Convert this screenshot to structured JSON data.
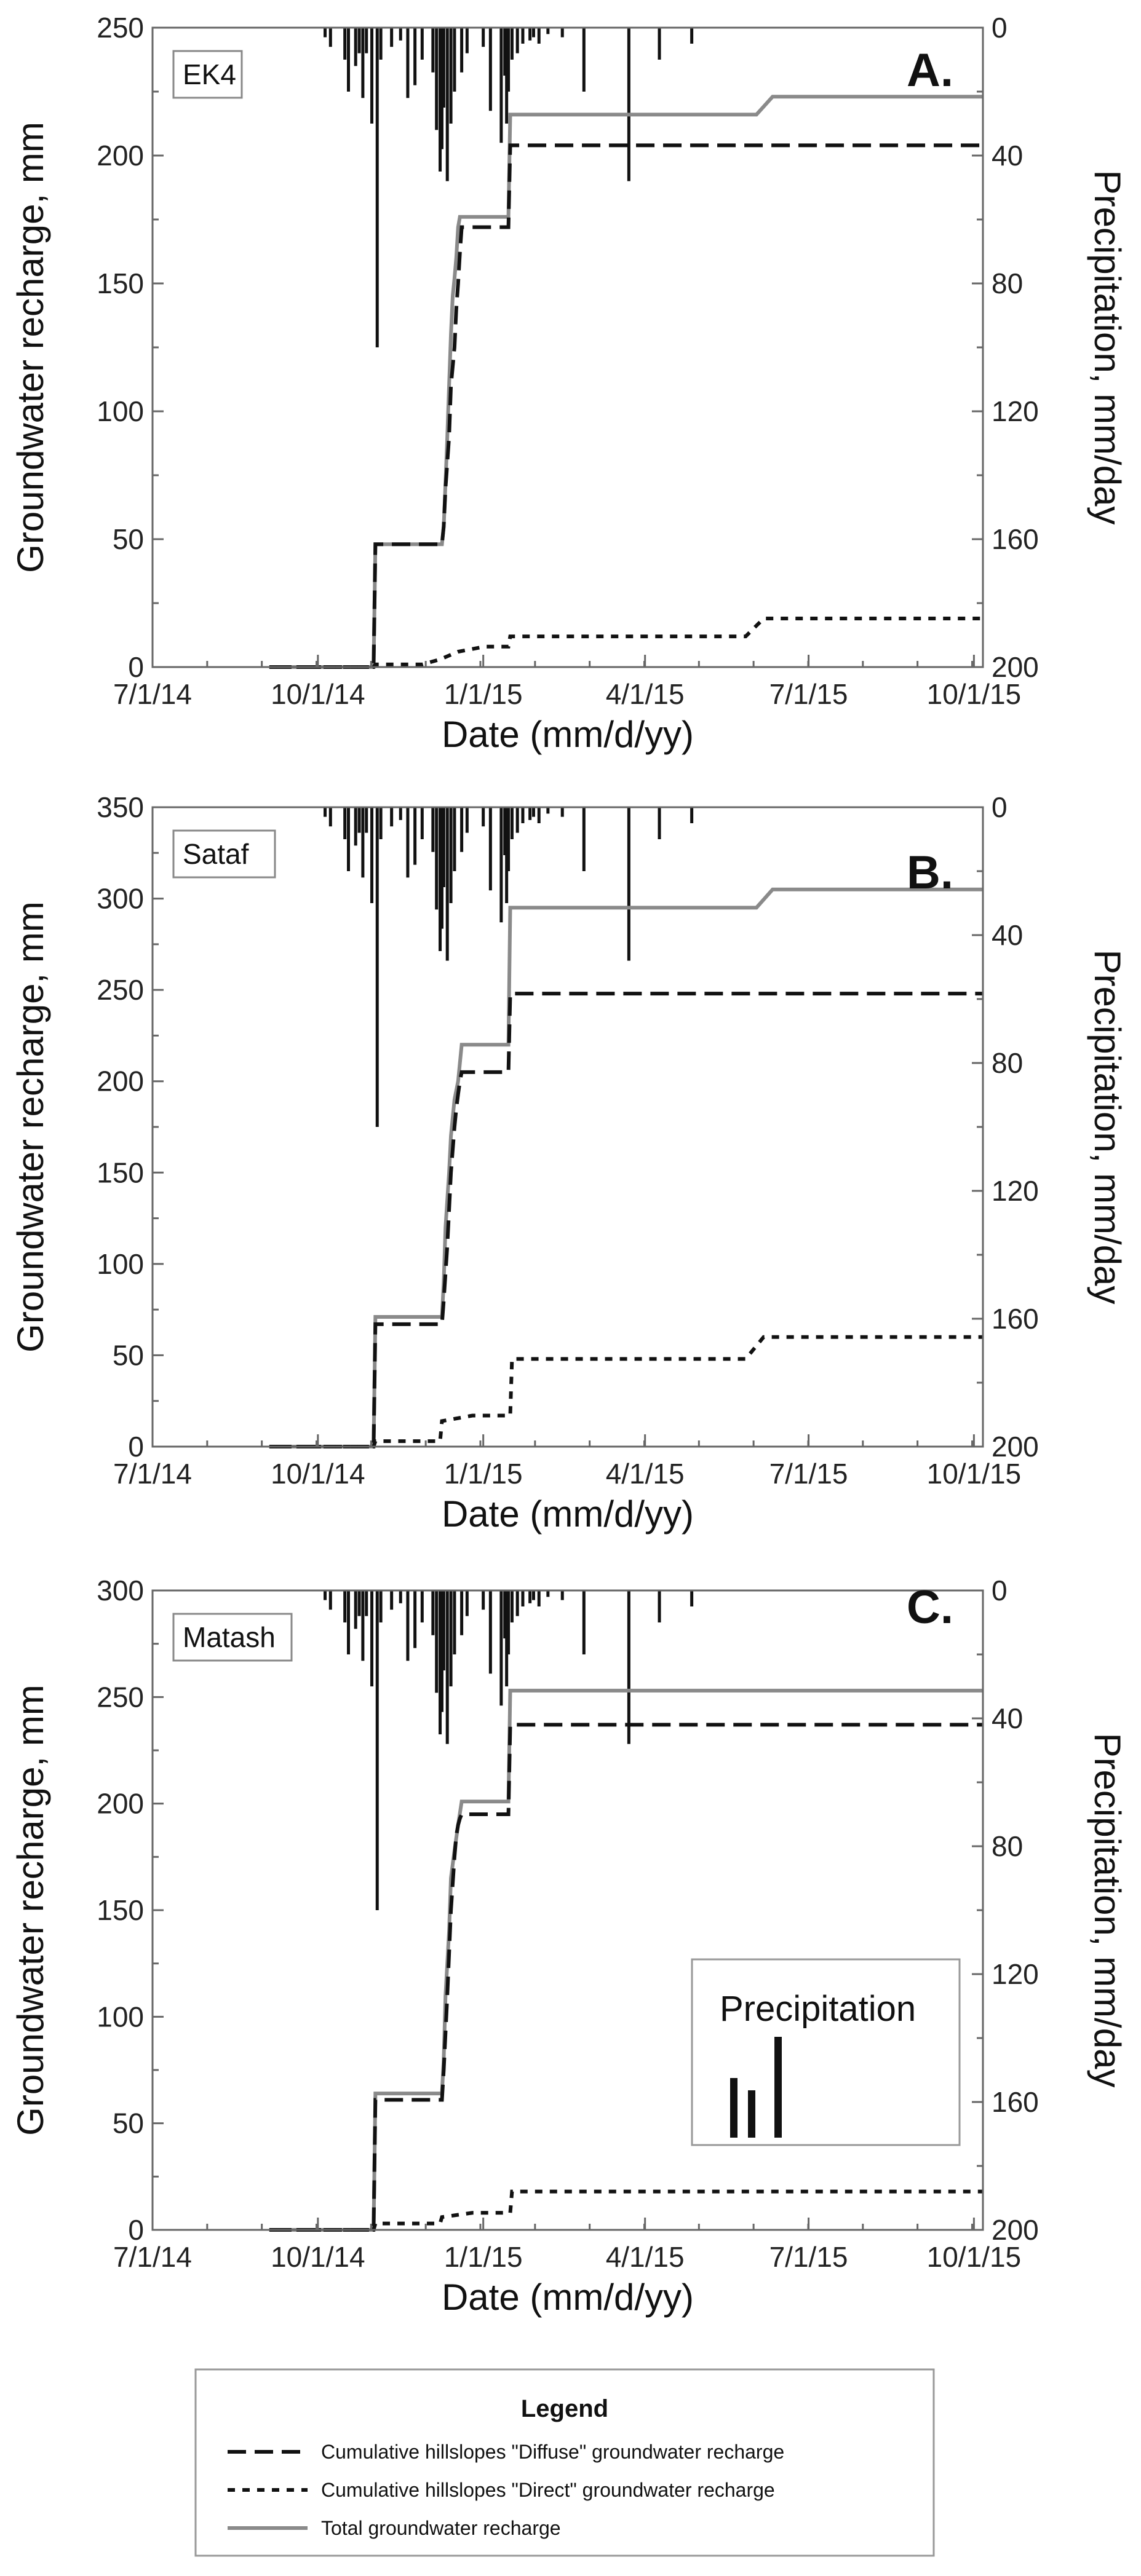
{
  "chart_data": [
    {
      "type": "line",
      "panel_letter": "A.",
      "site": "EK4",
      "xlabel": "Date (mm/d/yy)",
      "ylabel": "Groundwater recharge, mm",
      "y2label": "Precipitation, mm/day",
      "x_tick_labels": [
        "7/1/14",
        "10/1/14",
        "1/1/15",
        "4/1/15",
        "7/1/15",
        "10/1/15"
      ],
      "y_ticks": [
        0,
        50,
        100,
        150,
        200,
        250
      ],
      "ylim": [
        0,
        250
      ],
      "y2_ticks": [
        0,
        40,
        80,
        120,
        160,
        200
      ],
      "y2lim": [
        0,
        200
      ],
      "series": [
        {
          "name": "Cumulative hillslopes \"Diffuse\" groundwater recharge",
          "x": [
            65,
            123,
            124,
            161,
            162,
            163,
            165,
            166,
            168,
            169,
            170,
            171,
            172,
            198,
            199,
            400,
            449,
            455,
            462
          ],
          "values": [
            0,
            0,
            48,
            48,
            55,
            70,
            90,
            110,
            125,
            140,
            150,
            162,
            172,
            172,
            204,
            204,
            204,
            204,
            204
          ]
        },
        {
          "name": "Cumulative hillslopes \"Direct\" groundwater recharge",
          "x": [
            65,
            123,
            124,
            150,
            160,
            170,
            185,
            198,
            199,
            330,
            340,
            462
          ],
          "values": [
            0,
            0,
            1,
            1,
            3,
            6,
            8,
            8,
            12,
            12,
            19,
            19
          ]
        },
        {
          "name": "Total groundwater recharge",
          "x": [
            65,
            123,
            124,
            161,
            162,
            163,
            164,
            165,
            166,
            167,
            168,
            169,
            170,
            171,
            198,
            199,
            336,
            345,
            462
          ],
          "values": [
            0,
            0,
            48,
            48,
            55,
            72,
            90,
            110,
            130,
            145,
            152,
            160,
            172,
            176,
            176,
            216,
            216,
            223,
            223
          ]
        },
        {
          "name": "Precipitation",
          "x": [
            96,
            99,
            107,
            109,
            113,
            115,
            117,
            119,
            122,
            125,
            127,
            133,
            138,
            142,
            146,
            150,
            156,
            158,
            160,
            161,
            162,
            164,
            166,
            168,
            172,
            175,
            184,
            188,
            194,
            196,
            197,
            198,
            200,
            203,
            206,
            210,
            212,
            215,
            220,
            228,
            240,
            265,
            282,
            300
          ],
          "values": [
            3,
            6,
            10,
            20,
            12,
            8,
            22,
            8,
            30,
            100,
            10,
            6,
            4,
            22,
            18,
            10,
            14,
            32,
            45,
            38,
            25,
            48,
            30,
            20,
            14,
            8,
            6,
            26,
            36,
            15,
            30,
            20,
            10,
            8,
            5,
            4,
            3,
            5,
            2,
            3,
            20,
            48,
            10,
            5
          ]
        }
      ]
    },
    {
      "type": "line",
      "panel_letter": "B.",
      "site": "Sataf",
      "xlabel": "Date (mm/d/yy)",
      "ylabel": "Groundwater recharge, mm",
      "y2label": "Precipitation, mm/day",
      "x_tick_labels": [
        "7/1/14",
        "10/1/14",
        "1/1/15",
        "4/1/15",
        "7/1/15",
        "10/1/15"
      ],
      "y_ticks": [
        0,
        50,
        100,
        150,
        200,
        250,
        300,
        350
      ],
      "ylim": [
        0,
        350
      ],
      "y2_ticks": [
        0,
        40,
        80,
        120,
        160,
        200
      ],
      "y2lim": [
        0,
        200
      ],
      "series": [
        {
          "name": "Cumulative hillslopes \"Diffuse\" groundwater recharge",
          "x": [
            65,
            123,
            124,
            161,
            162,
            164,
            166,
            168,
            169,
            170,
            171,
            172,
            198,
            199,
            400,
            462
          ],
          "values": [
            0,
            0,
            67,
            67,
            80,
            110,
            150,
            175,
            185,
            193,
            200,
            205,
            205,
            248,
            248,
            248
          ]
        },
        {
          "name": "Cumulative hillslopes \"Direct\" groundwater recharge",
          "x": [
            65,
            123,
            124,
            160,
            161,
            178,
            199,
            200,
            330,
            340,
            462
          ],
          "values": [
            0,
            0,
            3,
            3,
            14,
            17,
            17,
            48,
            48,
            60,
            60
          ]
        },
        {
          "name": "Total groundwater recharge",
          "x": [
            65,
            123,
            124,
            161,
            162,
            163,
            165,
            166,
            168,
            170,
            172,
            198,
            199,
            336,
            345,
            462
          ],
          "values": [
            0,
            0,
            71,
            71,
            90,
            120,
            150,
            170,
            190,
            200,
            220,
            220,
            295,
            295,
            305,
            305
          ]
        },
        {
          "name": "Precipitation",
          "x": [
            96,
            99,
            107,
            109,
            113,
            115,
            117,
            119,
            122,
            125,
            127,
            133,
            138,
            142,
            146,
            150,
            156,
            158,
            160,
            161,
            162,
            164,
            166,
            168,
            172,
            175,
            184,
            188,
            194,
            196,
            197,
            198,
            200,
            203,
            206,
            210,
            212,
            215,
            220,
            228,
            240,
            265,
            282,
            300
          ],
          "values": [
            3,
            6,
            10,
            20,
            12,
            8,
            22,
            8,
            30,
            100,
            10,
            6,
            4,
            22,
            18,
            10,
            14,
            32,
            45,
            38,
            25,
            48,
            30,
            20,
            14,
            8,
            6,
            26,
            36,
            15,
            30,
            20,
            10,
            8,
            5,
            4,
            3,
            5,
            2,
            3,
            20,
            48,
            10,
            5
          ]
        }
      ]
    },
    {
      "type": "line",
      "panel_letter": "C.",
      "site": "Matash",
      "xlabel": "Date (mm/d/yy)",
      "ylabel": "Groundwater recharge, mm",
      "y2label": "Precipitation, mm/day",
      "x_tick_labels": [
        "7/1/14",
        "10/1/14",
        "1/1/15",
        "4/1/15",
        "7/1/15",
        "10/1/15"
      ],
      "y_ticks": [
        0,
        50,
        100,
        150,
        200,
        250,
        300
      ],
      "ylim": [
        0,
        300
      ],
      "y2_ticks": [
        0,
        40,
        80,
        120,
        160,
        200
      ],
      "y2lim": [
        0,
        200
      ],
      "series": [
        {
          "name": "Cumulative hillslopes \"Diffuse\" groundwater recharge",
          "x": [
            65,
            123,
            124,
            161,
            162,
            164,
            166,
            168,
            169,
            170,
            171,
            172,
            198,
            199,
            462
          ],
          "values": [
            0,
            0,
            61,
            61,
            75,
            110,
            150,
            175,
            185,
            190,
            193,
            195,
            195,
            237,
            237
          ]
        },
        {
          "name": "Cumulative hillslopes \"Direct\" groundwater recharge",
          "x": [
            65,
            123,
            124,
            160,
            161,
            178,
            199,
            200,
            462
          ],
          "values": [
            0,
            0,
            3,
            3,
            6,
            8,
            8,
            18,
            18
          ]
        },
        {
          "name": "Total groundwater recharge",
          "x": [
            65,
            123,
            124,
            161,
            162,
            163,
            165,
            166,
            168,
            170,
            172,
            198,
            199,
            462
          ],
          "values": [
            0,
            0,
            64,
            64,
            80,
            110,
            140,
            165,
            178,
            190,
            201,
            201,
            253,
            253
          ]
        },
        {
          "name": "Precipitation",
          "x": [
            96,
            99,
            107,
            109,
            113,
            115,
            117,
            119,
            122,
            125,
            127,
            133,
            138,
            142,
            146,
            150,
            156,
            158,
            160,
            161,
            162,
            164,
            166,
            168,
            172,
            175,
            184,
            188,
            194,
            196,
            197,
            198,
            200,
            203,
            206,
            210,
            212,
            215,
            220,
            228,
            240,
            265,
            282,
            300
          ],
          "values": [
            3,
            6,
            10,
            20,
            12,
            8,
            22,
            8,
            30,
            100,
            10,
            6,
            4,
            22,
            18,
            10,
            14,
            32,
            45,
            38,
            25,
            48,
            30,
            20,
            14,
            8,
            6,
            26,
            36,
            15,
            30,
            20,
            10,
            8,
            5,
            4,
            3,
            5,
            2,
            3,
            20,
            48,
            10,
            5
          ]
        }
      ]
    }
  ],
  "inset_legend": {
    "title": "Precipitation"
  },
  "legend": {
    "title": "Legend",
    "items": [
      {
        "label": "Cumulative hillslopes \"Diffuse\" groundwater recharge",
        "style": "long-dash",
        "color": "#111111"
      },
      {
        "label": "Cumulative hillslopes \"Direct\" groundwater recharge",
        "style": "short-dash",
        "color": "#111111"
      },
      {
        "label": "Total groundwater recharge",
        "style": "solid",
        "color": "#8a8a8a"
      }
    ]
  },
  "colors": {
    "precipitation": "#111111",
    "diffuse": "#111111",
    "direct": "#111111",
    "total": "#8a8a8a",
    "axis": "#666666"
  }
}
